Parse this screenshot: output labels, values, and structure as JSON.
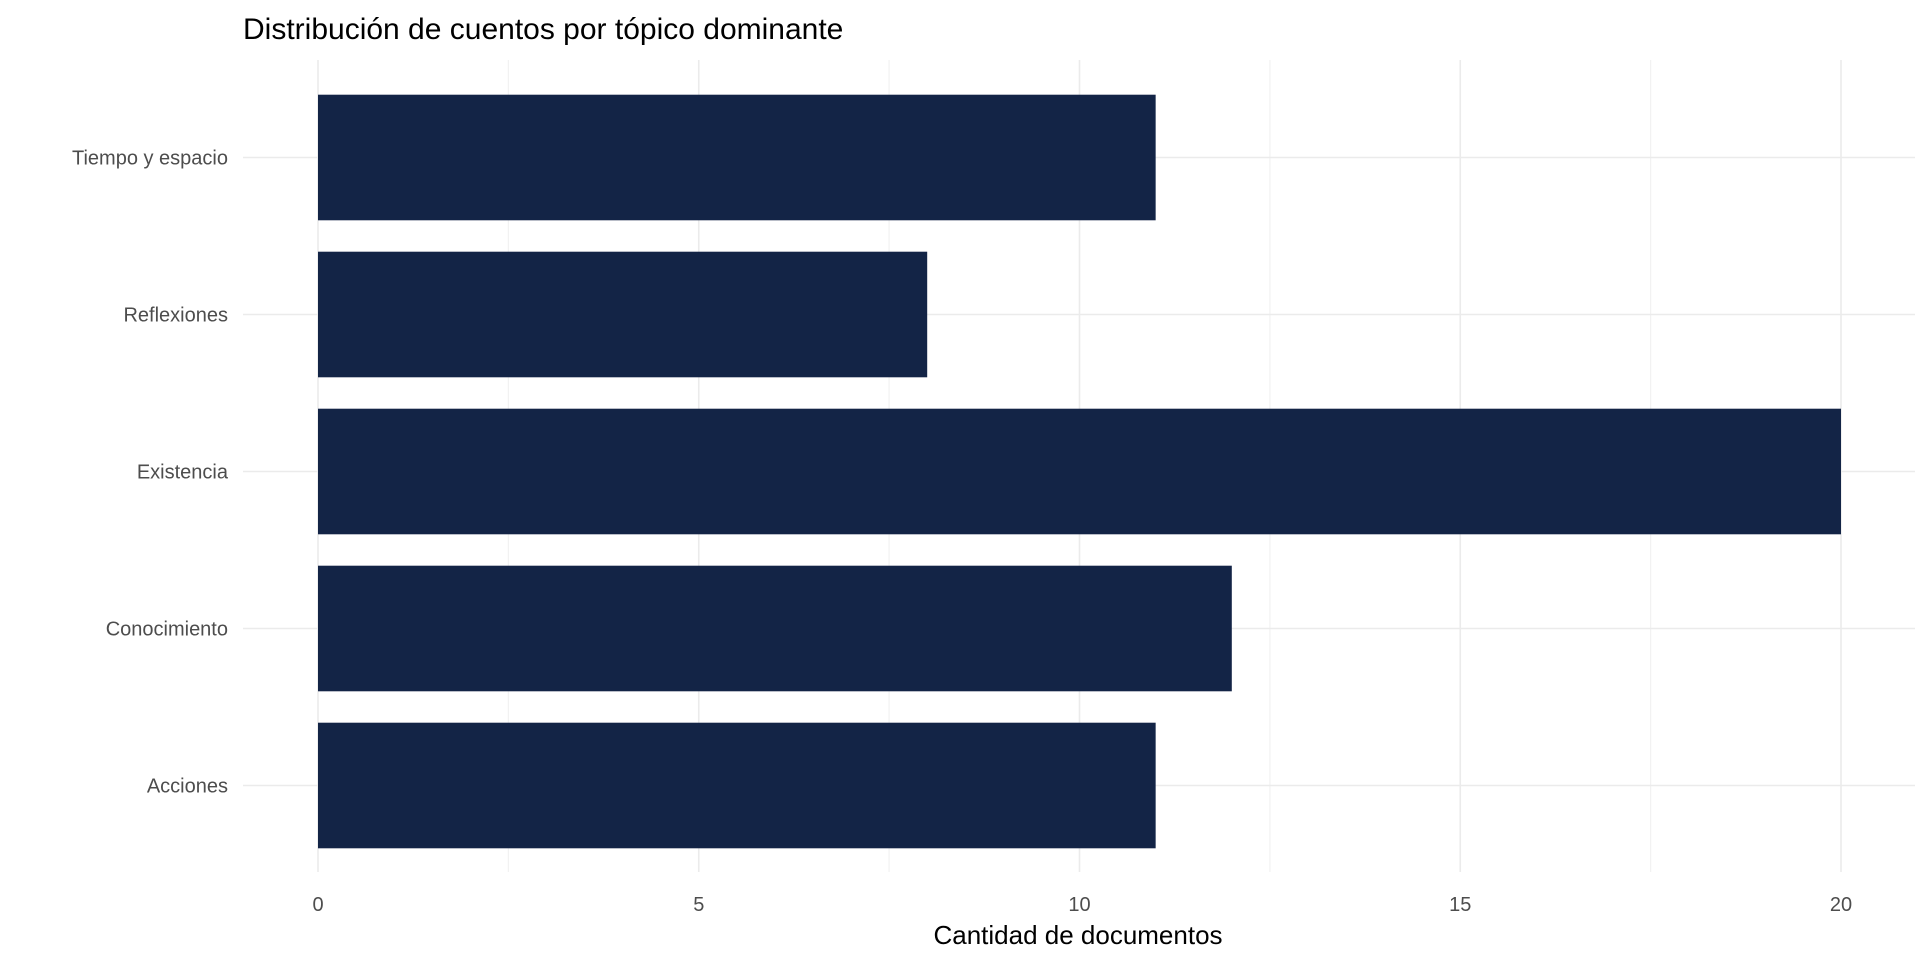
{
  "chart_data": {
    "type": "bar",
    "orientation": "horizontal",
    "title": "Distribución de cuentos por tópico dominante",
    "xlabel": "Cantidad de documentos",
    "ylabel": "",
    "categories": [
      "Acciones",
      "Conocimiento",
      "Existencia",
      "Reflexiones",
      "Tiempo y espacio"
    ],
    "values": [
      11,
      12,
      20,
      8,
      11
    ],
    "xlim": [
      0,
      21
    ],
    "x_ticks": [
      0,
      5,
      10,
      15,
      20
    ],
    "x_tick_labels": [
      "0",
      "5",
      "10",
      "15",
      "20"
    ],
    "grid": true,
    "bar_color": "#132446"
  }
}
